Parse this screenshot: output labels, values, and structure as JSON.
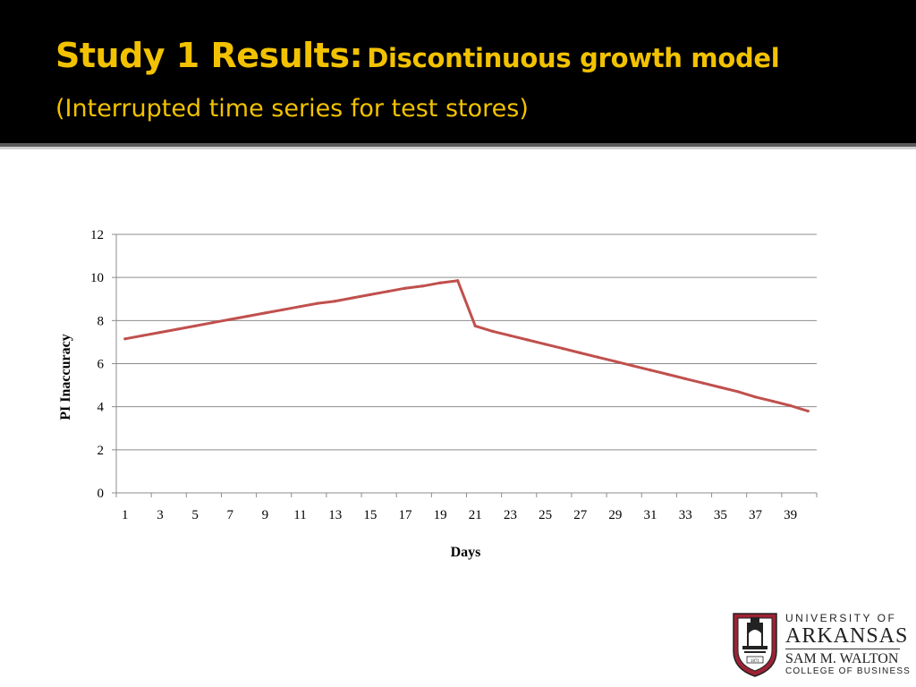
{
  "slide": {
    "title_main": "Study 1 Results:",
    "title_sub": "Discontinuous growth model",
    "title_line2": "(Interrupted time series for test stores)",
    "title_color": "#f2c200"
  },
  "chart_data": {
    "type": "line",
    "title": "",
    "xlabel": "Days",
    "ylabel": "PI Inaccuracy",
    "x": [
      1,
      2,
      3,
      4,
      5,
      6,
      7,
      8,
      9,
      10,
      11,
      12,
      13,
      14,
      15,
      16,
      17,
      18,
      19,
      20,
      21,
      22,
      23,
      24,
      25,
      26,
      27,
      28,
      29,
      30,
      31,
      32,
      33,
      34,
      35,
      36,
      37,
      38,
      39,
      40
    ],
    "series": [
      {
        "name": "",
        "color": "#c0504d",
        "values": [
          7.15,
          7.3,
          7.45,
          7.6,
          7.75,
          7.9,
          8.05,
          8.2,
          8.35,
          8.5,
          8.65,
          8.8,
          8.9,
          9.05,
          9.2,
          9.35,
          9.5,
          9.6,
          9.75,
          9.85,
          7.75,
          7.5,
          7.3,
          7.1,
          6.9,
          6.7,
          6.5,
          6.3,
          6.1,
          5.9,
          5.7,
          5.5,
          5.3,
          5.1,
          4.9,
          4.7,
          4.45,
          4.25,
          4.05,
          3.8
        ]
      }
    ],
    "ylim": [
      0,
      12
    ],
    "yticks": [
      0,
      2,
      4,
      6,
      8,
      10,
      12
    ],
    "xtick_labels": [
      "1",
      "3",
      "5",
      "7",
      "9",
      "11",
      "13",
      "15",
      "17",
      "19",
      "21",
      "23",
      "25",
      "27",
      "29",
      "31",
      "33",
      "35",
      "37",
      "39"
    ],
    "grid": "horizontal",
    "legend": "none"
  },
  "logo": {
    "line1": "UNIVERSITY OF",
    "line2": "ARKANSAS",
    "line3": "SAM M. WALTON",
    "line4": "COLLEGE OF BUSINESS",
    "seal_year": "1871",
    "brand_color": "#9d2235"
  }
}
